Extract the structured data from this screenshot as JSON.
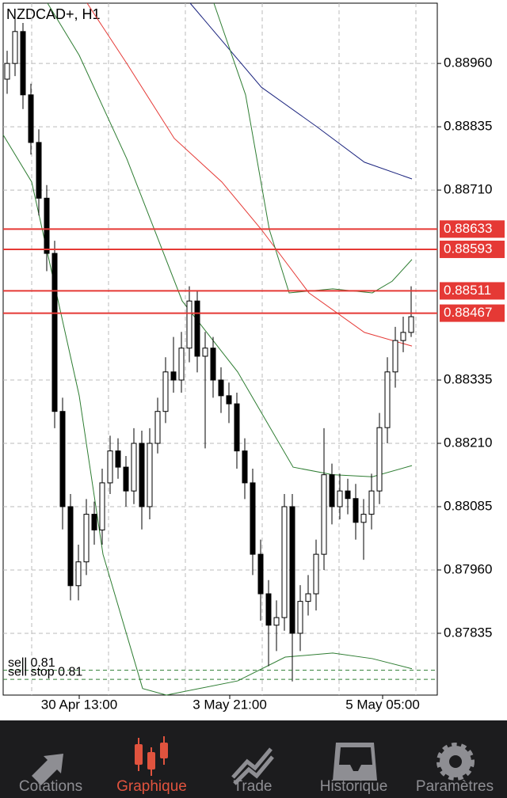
{
  "chart_data": {
    "type": "candlestick",
    "title": "NZDCAD+, H1",
    "ylim": [
      0.87713,
      0.89079
    ],
    "yticks": [
      {
        "value": 0.8896,
        "label": "0.88960"
      },
      0.88835,
      {
        "value": 0.8871,
        "label": "0.88710"
      },
      0.88335,
      {
        "value": 0.8821,
        "label": "0.88210"
      },
      0.88085,
      {
        "value": 0.8796,
        "label": "0.87960"
      },
      0.87835
    ],
    "xlim": [
      -0.5,
      54.3
    ],
    "xticks": [
      {
        "value": 9.1,
        "label": "30 Apr 13:00"
      },
      {
        "value": 28.1,
        "label": "3 May 21:00"
      },
      {
        "value": 47.4,
        "label": "5 May 05:00"
      }
    ],
    "vgrid": [
      3.1,
      12.8,
      22.5,
      32.2,
      41.9,
      51.6
    ],
    "grid": true,
    "up_color": "#ffffff",
    "down_color": "#000000",
    "open": [
      0.88929,
      0.8896,
      0.89023,
      0.88898,
      0.88804,
      0.88694,
      0.88585,
      0.88273,
      0.88085,
      0.87929,
      0.87976,
      0.8807,
      0.88039,
      0.88132,
      0.88195,
      0.88163,
      0.88116,
      0.8821,
      0.88085,
      0.8821,
      0.88273,
      0.88351,
      0.88335,
      0.88398,
      0.88491,
      0.88382,
      0.88398,
      0.88335,
      0.88304,
      0.88288,
      0.88195,
      0.88132,
      0.87991,
      0.87913,
      0.87851,
      0.87866,
      0.88085,
      0.87835,
      0.87898,
      0.87913,
      0.87991,
      0.88148,
      0.88085,
      0.88116,
      0.88101,
      0.88054,
      0.8807,
      0.88116,
      0.88241,
      0.88351,
      0.88413,
      0.88429
    ],
    "high": [
      0.88985,
      0.89048,
      0.8904,
      0.8892,
      0.8883,
      0.8872,
      0.8861,
      0.883,
      0.8811,
      0.8801,
      0.881,
      0.88095,
      0.8816,
      0.88225,
      0.8822,
      0.88185,
      0.8824,
      0.88235,
      0.8824,
      0.883,
      0.8838,
      0.8842,
      0.8843,
      0.8852,
      0.8851,
      0.8843,
      0.8842,
      0.8836,
      0.8833,
      0.8831,
      0.8822,
      0.8816,
      0.8802,
      0.8794,
      0.879,
      0.8811,
      0.8811,
      0.8793,
      0.8795,
      0.8802,
      0.8824,
      0.8817,
      0.8815,
      0.8814,
      0.8813,
      0.881,
      0.8815,
      0.8827,
      0.8838,
      0.8844,
      0.8846,
      0.8852
    ],
    "low": [
      0.889,
      0.88935,
      0.8887,
      0.8878,
      0.8866,
      0.8855,
      0.8824,
      0.8804,
      0.879,
      0.879,
      0.8795,
      0.8801,
      0.8801,
      0.8811,
      0.8814,
      0.88085,
      0.8809,
      0.8804,
      0.8806,
      0.8819,
      0.8825,
      0.8831,
      0.8831,
      0.8837,
      0.8835,
      0.882,
      0.883,
      0.8827,
      0.8825,
      0.8816,
      0.881,
      0.8795,
      0.8786,
      0.8777,
      0.878,
      0.8784,
      0.8774,
      0.878,
      0.8787,
      0.8788,
      0.8796,
      0.8805,
      0.8806,
      0.8807,
      0.8802,
      0.8798,
      0.8804,
      0.8809,
      0.8821,
      0.8832,
      0.8839,
      0.8842
    ],
    "close": [
      0.8896,
      0.89023,
      0.88898,
      0.88804,
      0.88694,
      0.88585,
      0.88273,
      0.88085,
      0.87929,
      0.87976,
      0.8807,
      0.88039,
      0.88132,
      0.88195,
      0.88163,
      0.88116,
      0.8821,
      0.88085,
      0.8821,
      0.88273,
      0.88351,
      0.88335,
      0.88398,
      0.88491,
      0.88382,
      0.88398,
      0.88335,
      0.88304,
      0.88288,
      0.88195,
      0.88132,
      0.87991,
      0.87913,
      0.87851,
      0.87866,
      0.88085,
      0.87835,
      0.87898,
      0.87913,
      0.87991,
      0.88148,
      0.88085,
      0.88116,
      0.88101,
      0.88054,
      0.8807,
      0.88116,
      0.88241,
      0.88351,
      0.88413,
      0.88429,
      0.8846
    ],
    "series": [
      {
        "color": "#1a237e",
        "x": [
          23.1,
          32.1,
          39.1,
          45.1,
          51.1
        ],
        "values": [
          0.89079,
          0.88913,
          0.88835,
          0.88765,
          0.88732
        ]
      },
      {
        "color": "#e53935",
        "x": [
          10.1,
          15.1,
          21.1,
          27.1,
          32.1,
          38.1,
          45.1,
          51.1
        ],
        "values": [
          0.89079,
          0.8896,
          0.88812,
          0.88726,
          0.88632,
          0.88507,
          0.88429,
          0.88402
        ]
      },
      {
        "color": "#2e7d32",
        "x": [
          -0.5,
          3.1,
          9.1,
          12.1,
          17.1,
          20.1,
          29.1,
          35.1,
          41.1,
          46.1,
          51.1
        ],
        "values": [
          0.88819,
          0.88726,
          0.88304,
          0.87991,
          0.87726,
          0.87713,
          0.87741,
          0.87788,
          0.87796,
          0.87785,
          0.87765
        ]
      },
      {
        "color": "#2e7d32",
        "x": [
          5.1,
          9.1,
          15.1,
          22.1,
          29.1,
          36.1,
          41.1,
          46.1,
          51.1
        ],
        "values": [
          0.89079,
          0.88976,
          0.88772,
          0.88491,
          0.88351,
          0.88163,
          0.88148,
          0.88144,
          0.88166
        ]
      },
      {
        "color": "#2e7d32",
        "x": [
          26.1,
          30.1,
          33.1,
          35.6,
          41.1,
          46.1,
          48.6,
          51.1
        ],
        "values": [
          0.89079,
          0.88898,
          0.88632,
          0.88507,
          0.88515,
          0.88507,
          0.8853,
          0.88573
        ]
      }
    ],
    "levels": [
      {
        "value": 0.88633,
        "label": "0.88633"
      },
      {
        "value": 0.88593,
        "label": "0.88593"
      },
      {
        "value": 0.88511,
        "label": "0.88511"
      },
      {
        "value": 0.88467,
        "label": "0.88467"
      }
    ],
    "level_color": "#e53935",
    "orders": [
      {
        "label": "sell 0.81",
        "value": 0.87762
      },
      {
        "label": "sell stop 0.81",
        "value": 0.87744
      }
    ]
  },
  "tabs": [
    "Cotations",
    "Graphique",
    "Trade",
    "Historique",
    "Paramètres"
  ],
  "active_tab": 1
}
